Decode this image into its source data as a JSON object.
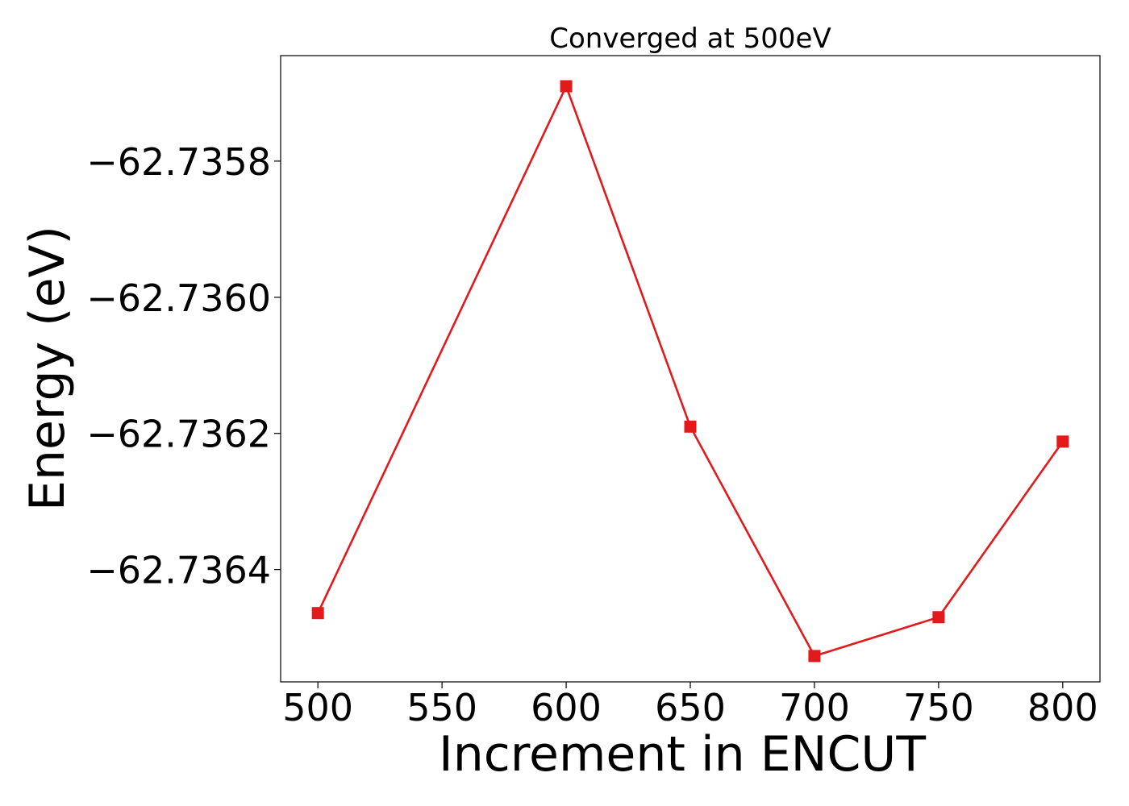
{
  "chart_data": {
    "type": "line",
    "title": "Converged at 500eV",
    "xlabel": "Increment in ENCUT",
    "ylabel": "Energy (eV)",
    "x": [
      500,
      600,
      650,
      700,
      750,
      800
    ],
    "series": [
      {
        "values": [
          -62.736464,
          -62.73569,
          -62.73619,
          -62.736527,
          -62.73647,
          -62.736212
        ],
        "color": "#e31a1c",
        "marker": "square"
      }
    ],
    "xlim": [
      485,
      815
    ],
    "ylim": [
      -62.736565,
      -62.735645
    ],
    "xticks": [
      500,
      550,
      600,
      650,
      700,
      750,
      800
    ],
    "xtick_labels": [
      "500",
      "550",
      "600",
      "650",
      "700",
      "750",
      "800"
    ],
    "yticks": [
      -62.7358,
      -62.736,
      -62.7362,
      -62.7364
    ],
    "ytick_labels": [
      "−62.7358",
      "−62.7360",
      "−62.7362",
      "−62.7364"
    ],
    "grid": false,
    "legend": "none"
  }
}
